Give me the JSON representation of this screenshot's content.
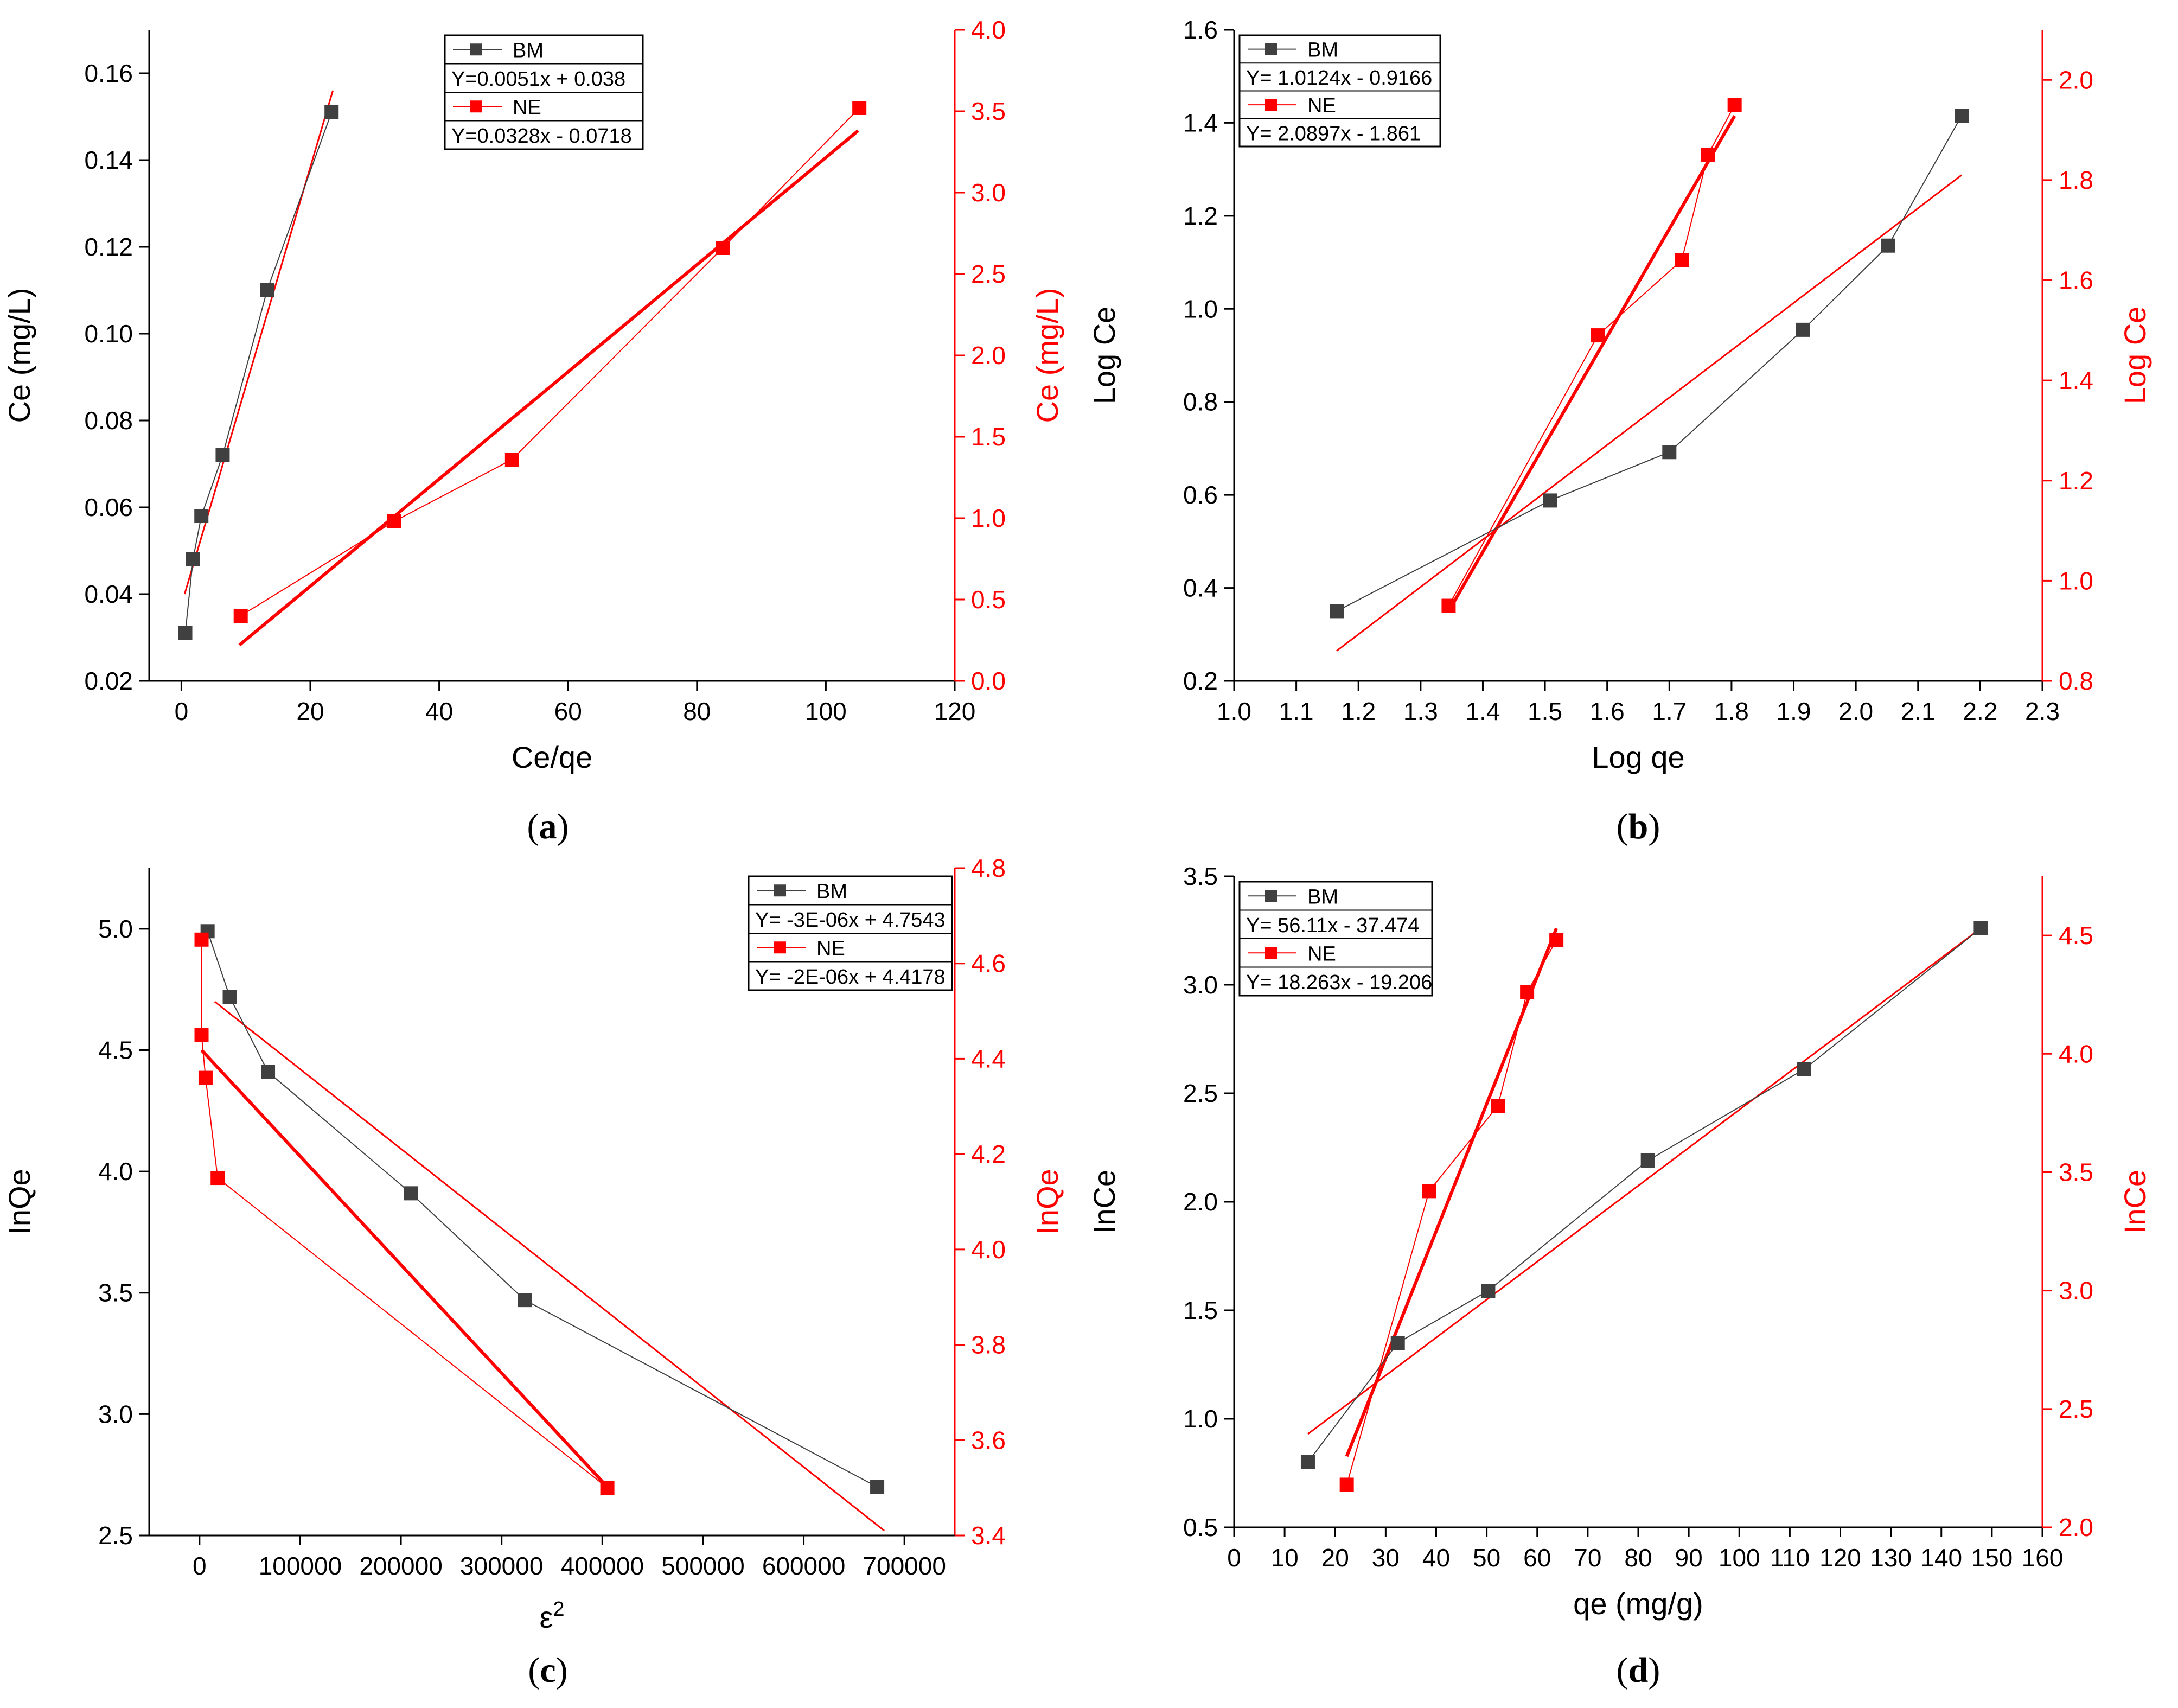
{
  "colors": {
    "bm": "#404040",
    "ne": "#ff0000",
    "axis": "#000000",
    "legend_border": "#000000"
  },
  "legend_labels": {
    "bm": "BM",
    "ne": "NE"
  },
  "chart_data": [
    {
      "id": "a",
      "panel_label": "(a)",
      "type": "line",
      "title": "",
      "xlabel": "Ce/qe",
      "ylabel": "Ce (mg/L)",
      "y2label": "Ce (mg/L)",
      "xlim": [
        -5,
        120
      ],
      "ylim": [
        0.02,
        0.17
      ],
      "y2lim": [
        0.0,
        4.0
      ],
      "xticks": [
        0,
        20,
        40,
        60,
        80,
        100,
        120
      ],
      "xtick_labels": [
        "0",
        "20",
        "40",
        "60",
        "80",
        "100",
        "120"
      ],
      "yticks": [
        0.02,
        0.04,
        0.06,
        0.08,
        0.1,
        0.12,
        0.14,
        0.16
      ],
      "ytick_labels": [
        "0.02",
        "0.04",
        "0.06",
        "0.08",
        "0.10",
        "0.12",
        "0.14",
        "0.16"
      ],
      "y2ticks": [
        0.0,
        0.5,
        1.0,
        1.5,
        2.0,
        2.5,
        3.0,
        3.5,
        4.0
      ],
      "y2tick_labels": [
        "0.0",
        "0.5",
        "1.0",
        "1.5",
        "2.0",
        "2.5",
        "3.0",
        "3.5",
        "4.0"
      ],
      "legend": {
        "bm_equation": "Y=0.0051x + 0.038",
        "ne_equation": "Y=0.0328x - 0.0718"
      },
      "series": [
        {
          "name": "BM",
          "axis": "left",
          "x": [
            0.6,
            1.8,
            3.1,
            6.4,
            13.3,
            23.3
          ],
          "y": [
            0.031,
            0.048,
            0.058,
            0.072,
            0.11,
            0.151
          ]
        },
        {
          "name": "NE",
          "axis": "right",
          "x": [
            9.2,
            33.0,
            51.3,
            84.0,
            105.2
          ],
          "y": [
            0.4,
            0.98,
            1.36,
            2.66,
            3.52
          ]
        }
      ],
      "fits": [
        {
          "series": "BM",
          "axis": "left",
          "x": [
            0.5,
            23.5
          ],
          "y": [
            0.04,
            0.156
          ]
        },
        {
          "series": "NE",
          "axis": "right",
          "x": [
            9,
            105
          ],
          "y": [
            0.22,
            3.38
          ]
        }
      ]
    },
    {
      "id": "b",
      "panel_label": "(b)",
      "type": "line",
      "title": "",
      "xlabel": "Log qe",
      "ylabel": "Log Ce",
      "y2label": "Log Ce",
      "xlim": [
        1.0,
        2.3
      ],
      "ylim": [
        0.2,
        1.6
      ],
      "y2lim": [
        0.8,
        2.1
      ],
      "xticks": [
        1.0,
        1.1,
        1.2,
        1.3,
        1.4,
        1.5,
        1.6,
        1.7,
        1.8,
        1.9,
        2.0,
        2.1,
        2.2,
        2.3
      ],
      "xtick_labels": [
        "1.0",
        "1.1",
        "1.2",
        "1.3",
        "1.4",
        "1.5",
        "1.6",
        "1.7",
        "1.8",
        "1.9",
        "2.0",
        "2.1",
        "2.2",
        "2.3"
      ],
      "yticks": [
        0.2,
        0.4,
        0.6,
        0.8,
        1.0,
        1.2,
        1.4,
        1.6
      ],
      "ytick_labels": [
        "0.2",
        "0.4",
        "0.6",
        "0.8",
        "1.0",
        "1.2",
        "1.4",
        "1.6"
      ],
      "y2ticks": [
        0.8,
        1.0,
        1.2,
        1.4,
        1.6,
        1.8,
        2.0
      ],
      "y2tick_labels": [
        "0.8",
        "1.0",
        "1.2",
        "1.4",
        "1.6",
        "1.8",
        "2.0"
      ],
      "legend": {
        "bm_equation": "Y= 1.0124x - 0.9166",
        "ne_equation": "Y= 2.0897x - 1.861"
      },
      "series": [
        {
          "name": "BM",
          "axis": "left",
          "x": [
            1.165,
            1.508,
            1.7,
            1.915,
            2.052,
            2.17
          ],
          "y": [
            0.35,
            0.588,
            0.692,
            0.955,
            1.136,
            1.415
          ]
        },
        {
          "name": "NE",
          "axis": "right",
          "x": [
            1.345,
            1.585,
            1.72,
            1.762,
            1.805
          ],
          "y": [
            0.95,
            1.49,
            1.64,
            1.85,
            1.95
          ]
        }
      ],
      "fits": [
        {
          "series": "BM",
          "axis": "right",
          "x": [
            1.165,
            2.17
          ],
          "y": [
            0.86,
            1.81
          ]
        },
        {
          "series": "NE",
          "axis": "left",
          "x": [
            1.345,
            1.805
          ],
          "y": [
            0.35,
            1.415
          ]
        }
      ]
    },
    {
      "id": "c",
      "panel_label": "(c)",
      "type": "line",
      "title": "",
      "xlabel": "ε²",
      "ylabel": "InQe",
      "y2label": "InQe",
      "xlim": [
        -50000,
        750000
      ],
      "ylim": [
        2.5,
        5.25
      ],
      "y2lim": [
        3.4,
        4.8
      ],
      "xticks": [
        0,
        100000,
        200000,
        300000,
        400000,
        500000,
        600000,
        700000
      ],
      "xtick_labels": [
        "0",
        "100000",
        "200000",
        "300000",
        "400000",
        "500000",
        "600000",
        "700000"
      ],
      "yticks": [
        2.5,
        3.0,
        3.5,
        4.0,
        4.5,
        5.0
      ],
      "ytick_labels": [
        "2.5",
        "3.0",
        "3.5",
        "4.0",
        "4.5",
        "5.0"
      ],
      "y2ticks": [
        3.4,
        3.6,
        3.8,
        4.0,
        4.2,
        4.4,
        4.6,
        4.8
      ],
      "y2tick_labels": [
        "3.4",
        "3.6",
        "3.8",
        "4.0",
        "4.2",
        "4.4",
        "4.6",
        "4.8"
      ],
      "legend": {
        "bm_equation": "Y= -3E-06x + 4.7543",
        "ne_equation": "Y= -2E-06x + 4.4178"
      },
      "series": [
        {
          "name": "BM",
          "axis": "left",
          "x": [
            8000,
            30000,
            68000,
            210000,
            323000,
            673000
          ],
          "y": [
            4.99,
            4.72,
            4.41,
            3.91,
            3.47,
            2.7
          ]
        },
        {
          "name": "NE",
          "axis": "right",
          "x": [
            2000,
            2000,
            6000,
            18000,
            405000
          ],
          "y": [
            4.65,
            4.45,
            4.36,
            4.15,
            3.5
          ]
        }
      ],
      "fits": [
        {
          "series": "BM",
          "axis": "right",
          "x": [
            15000,
            680000
          ],
          "y": [
            4.52,
            3.41
          ]
        },
        {
          "series": "NE",
          "axis": "left",
          "x": [
            2000,
            405000
          ],
          "y": [
            4.5,
            2.7
          ]
        }
      ]
    },
    {
      "id": "d",
      "panel_label": "(d)",
      "type": "line",
      "title": "",
      "xlabel": "qe (mg/g)",
      "ylabel": "InCe",
      "y2label": "InCe",
      "xlim": [
        0,
        160
      ],
      "ylim": [
        0.5,
        3.5
      ],
      "y2lim": [
        2.0,
        4.75
      ],
      "xticks": [
        0,
        10,
        20,
        30,
        40,
        50,
        60,
        70,
        80,
        90,
        100,
        110,
        120,
        130,
        140,
        150,
        160
      ],
      "xtick_labels": [
        "0",
        "10",
        "20",
        "30",
        "40",
        "50",
        "60",
        "70",
        "80",
        "90",
        "100",
        "110",
        "120",
        "130",
        "140",
        "150",
        "160"
      ],
      "yticks": [
        0.5,
        1.0,
        1.5,
        2.0,
        2.5,
        3.0,
        3.5
      ],
      "ytick_labels": [
        "0.5",
        "1.0",
        "1.5",
        "2.0",
        "2.5",
        "3.0",
        "3.5"
      ],
      "y2ticks": [
        2.0,
        2.5,
        3.0,
        3.5,
        4.0,
        4.5
      ],
      "y2tick_labels": [
        "2.0",
        "2.5",
        "3.0",
        "3.5",
        "4.0",
        "4.5"
      ],
      "legend": {
        "bm_equation": "Y= 56.11x - 37.474",
        "ne_equation": "Y= 18.263x - 19.206"
      },
      "series": [
        {
          "name": "BM",
          "axis": "left",
          "x": [
            14.6,
            32.4,
            50.3,
            81.9,
            112.8,
            147.8
          ],
          "y": [
            0.8,
            1.35,
            1.59,
            2.19,
            2.61,
            3.26
          ]
        },
        {
          "name": "NE",
          "axis": "right",
          "x": [
            22.3,
            38.6,
            52.2,
            58.0,
            63.8
          ],
          "y": [
            2.18,
            3.42,
            3.78,
            4.26,
            4.48
          ]
        }
      ],
      "fits": [
        {
          "series": "BM",
          "axis": "left",
          "x": [
            14.6,
            147.8
          ],
          "y": [
            0.93,
            3.26
          ]
        },
        {
          "series": "NE",
          "axis": "right",
          "x": [
            22.3,
            63.8
          ],
          "y": [
            2.3,
            4.53
          ]
        }
      ]
    }
  ]
}
